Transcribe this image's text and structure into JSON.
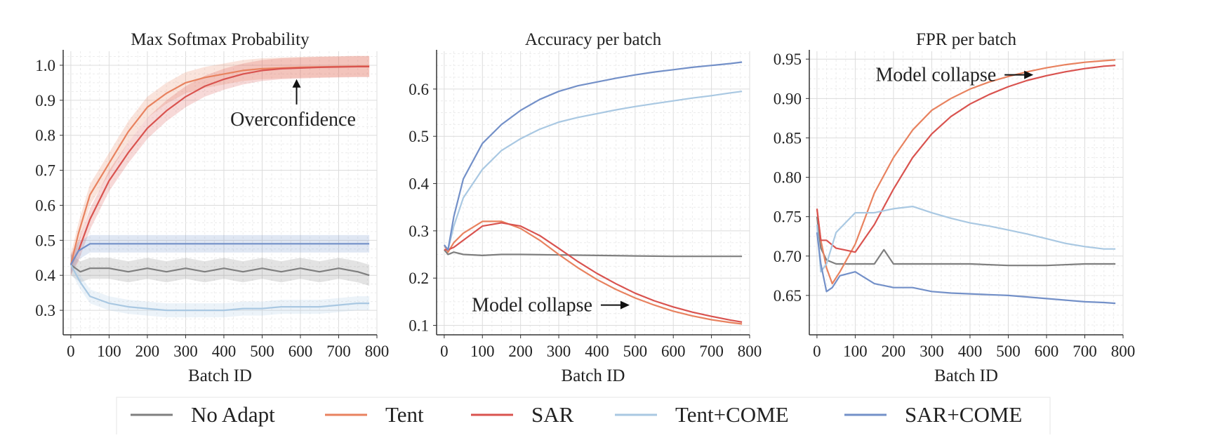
{
  "colors": {
    "no_adapt": "#7f7f7f",
    "tent": "#e8825f",
    "sar": "#d9534f",
    "tent_come": "#a9c8e2",
    "sar_come": "#7390c8"
  },
  "legend": [
    {
      "key": "no_adapt",
      "label": "No Adapt"
    },
    {
      "key": "tent",
      "label": "Tent"
    },
    {
      "key": "sar",
      "label": "SAR"
    },
    {
      "key": "tent_come",
      "label": "Tent+COME"
    },
    {
      "key": "sar_come",
      "label": "SAR+COME"
    }
  ],
  "chart_data": [
    {
      "type": "line",
      "title": "Max Softmax Probability",
      "xlabel": "Batch ID",
      "ylabel": "",
      "xlim": [
        -20,
        800
      ],
      "ylim": [
        0.23,
        1.04
      ],
      "xticks": [
        0,
        100,
        200,
        300,
        400,
        500,
        600,
        700,
        800
      ],
      "yticks": [
        0.3,
        0.4,
        0.5,
        0.6,
        0.7,
        0.8,
        0.9,
        1.0
      ],
      "ytick_labels": [
        "0.3",
        "0.4",
        "0.5",
        "0.6",
        "0.7",
        "0.8",
        "0.9",
        "1.0"
      ],
      "grid": true,
      "annotation": {
        "text": "Overconfidence",
        "arrow": "up",
        "x": 590,
        "y": 0.88
      },
      "series": [
        {
          "key": "no_adapt",
          "name": "No Adapt",
          "band": 0.03,
          "x": [
            0,
            25,
            50,
            100,
            150,
            200,
            250,
            300,
            350,
            400,
            450,
            500,
            550,
            600,
            650,
            700,
            750,
            780
          ],
          "y": [
            0.43,
            0.41,
            0.42,
            0.42,
            0.41,
            0.42,
            0.41,
            0.42,
            0.41,
            0.42,
            0.41,
            0.42,
            0.41,
            0.42,
            0.41,
            0.42,
            0.41,
            0.4
          ]
        },
        {
          "key": "tent",
          "name": "Tent",
          "band": 0.03,
          "x": [
            0,
            20,
            50,
            100,
            150,
            200,
            250,
            300,
            350,
            400,
            450,
            500,
            550,
            600,
            650,
            700,
            750,
            780
          ],
          "y": [
            0.43,
            0.52,
            0.63,
            0.72,
            0.81,
            0.88,
            0.92,
            0.95,
            0.965,
            0.975,
            0.985,
            0.99,
            0.992,
            0.994,
            0.995,
            0.996,
            0.997,
            0.997
          ]
        },
        {
          "key": "sar",
          "name": "SAR",
          "band": 0.03,
          "x": [
            0,
            20,
            50,
            100,
            150,
            200,
            250,
            300,
            350,
            400,
            450,
            500,
            550,
            600,
            650,
            700,
            750,
            780
          ],
          "y": [
            0.43,
            0.47,
            0.56,
            0.67,
            0.75,
            0.82,
            0.87,
            0.91,
            0.94,
            0.96,
            0.975,
            0.985,
            0.99,
            0.992,
            0.994,
            0.995,
            0.996,
            0.996
          ]
        },
        {
          "key": "tent_come",
          "name": "Tent+COME",
          "band": 0.02,
          "x": [
            0,
            25,
            50,
            100,
            150,
            200,
            250,
            300,
            350,
            400,
            450,
            500,
            550,
            600,
            650,
            700,
            750,
            780
          ],
          "y": [
            0.43,
            0.38,
            0.34,
            0.32,
            0.31,
            0.305,
            0.3,
            0.3,
            0.3,
            0.3,
            0.305,
            0.305,
            0.31,
            0.31,
            0.31,
            0.315,
            0.32,
            0.32
          ]
        },
        {
          "key": "sar_come",
          "name": "SAR+COME",
          "band": 0.025,
          "x": [
            0,
            20,
            50,
            100,
            150,
            200,
            250,
            300,
            350,
            400,
            450,
            500,
            550,
            600,
            650,
            700,
            750,
            780
          ],
          "y": [
            0.43,
            0.47,
            0.49,
            0.49,
            0.49,
            0.49,
            0.49,
            0.49,
            0.49,
            0.49,
            0.49,
            0.49,
            0.49,
            0.49,
            0.49,
            0.49,
            0.49,
            0.49
          ]
        }
      ]
    },
    {
      "type": "line",
      "title": "Accuracy per batch",
      "xlabel": "Batch ID",
      "ylabel": "",
      "xlim": [
        -20,
        800
      ],
      "ylim": [
        0.08,
        0.68
      ],
      "xticks": [
        0,
        100,
        200,
        300,
        400,
        500,
        600,
        700,
        800
      ],
      "yticks": [
        0.1,
        0.2,
        0.3,
        0.4,
        0.5,
        0.6
      ],
      "ytick_labels": [
        "0.1",
        "0.2",
        "0.3",
        "0.4",
        "0.5",
        "0.6"
      ],
      "grid": true,
      "annotation": {
        "text": "Model collapse",
        "arrow": "right",
        "x": 480,
        "y": 0.143
      },
      "series": [
        {
          "key": "no_adapt",
          "name": "No Adapt",
          "x": [
            0,
            10,
            25,
            50,
            100,
            150,
            200,
            300,
            400,
            500,
            600,
            700,
            780
          ],
          "y": [
            0.26,
            0.25,
            0.255,
            0.25,
            0.248,
            0.25,
            0.25,
            0.249,
            0.248,
            0.247,
            0.246,
            0.246,
            0.246
          ]
        },
        {
          "key": "tent",
          "name": "Tent",
          "x": [
            0,
            10,
            25,
            50,
            100,
            150,
            200,
            250,
            300,
            350,
            400,
            450,
            500,
            550,
            600,
            650,
            700,
            750,
            780
          ],
          "y": [
            0.27,
            0.255,
            0.275,
            0.295,
            0.32,
            0.32,
            0.305,
            0.28,
            0.25,
            0.222,
            0.197,
            0.176,
            0.158,
            0.143,
            0.13,
            0.12,
            0.112,
            0.106,
            0.103
          ]
        },
        {
          "key": "sar",
          "name": "SAR",
          "x": [
            0,
            10,
            25,
            50,
            100,
            150,
            200,
            250,
            300,
            350,
            400,
            450,
            500,
            550,
            600,
            650,
            700,
            750,
            780
          ],
          "y": [
            0.26,
            0.26,
            0.265,
            0.28,
            0.31,
            0.317,
            0.31,
            0.29,
            0.263,
            0.235,
            0.21,
            0.188,
            0.168,
            0.152,
            0.139,
            0.128,
            0.119,
            0.111,
            0.107
          ]
        },
        {
          "key": "tent_come",
          "name": "Tent+COME",
          "x": [
            0,
            10,
            25,
            50,
            100,
            150,
            200,
            250,
            300,
            350,
            400,
            450,
            500,
            550,
            600,
            650,
            700,
            750,
            780
          ],
          "y": [
            0.27,
            0.26,
            0.31,
            0.37,
            0.43,
            0.47,
            0.495,
            0.515,
            0.53,
            0.54,
            0.548,
            0.556,
            0.563,
            0.569,
            0.575,
            0.581,
            0.586,
            0.592,
            0.595
          ]
        },
        {
          "key": "sar_come",
          "name": "SAR+COME",
          "x": [
            0,
            10,
            25,
            50,
            100,
            150,
            200,
            250,
            300,
            350,
            400,
            450,
            500,
            550,
            600,
            650,
            700,
            750,
            780
          ],
          "y": [
            0.27,
            0.26,
            0.33,
            0.41,
            0.485,
            0.525,
            0.555,
            0.578,
            0.595,
            0.607,
            0.615,
            0.623,
            0.63,
            0.636,
            0.641,
            0.646,
            0.65,
            0.654,
            0.657
          ]
        }
      ]
    },
    {
      "type": "line",
      "title": "FPR per batch",
      "xlabel": "Batch ID",
      "ylabel": "",
      "xlim": [
        -20,
        800
      ],
      "ylim": [
        0.6,
        0.96
      ],
      "xticks": [
        0,
        100,
        200,
        300,
        400,
        500,
        600,
        700,
        800
      ],
      "yticks": [
        0.65,
        0.7,
        0.75,
        0.8,
        0.85,
        0.9,
        0.95
      ],
      "ytick_labels": [
        "0.65",
        "0.70",
        "0.75",
        "0.80",
        "0.85",
        "0.90",
        "0.95"
      ],
      "grid": true,
      "annotation": {
        "text": "Model collapse",
        "arrow": "right",
        "x": 560,
        "y": 0.93
      },
      "series": [
        {
          "key": "no_adapt",
          "name": "No Adapt",
          "x": [
            0,
            10,
            25,
            50,
            100,
            150,
            175,
            200,
            250,
            300,
            400,
            500,
            600,
            700,
            780
          ],
          "y": [
            0.75,
            0.71,
            0.695,
            0.69,
            0.69,
            0.69,
            0.708,
            0.69,
            0.69,
            0.69,
            0.69,
            0.688,
            0.688,
            0.69,
            0.69
          ]
        },
        {
          "key": "tent",
          "name": "Tent",
          "x": [
            0,
            10,
            25,
            40,
            60,
            100,
            150,
            200,
            250,
            300,
            350,
            400,
            450,
            500,
            550,
            600,
            650,
            700,
            750,
            780
          ],
          "y": [
            0.76,
            0.72,
            0.685,
            0.665,
            0.68,
            0.715,
            0.78,
            0.825,
            0.86,
            0.885,
            0.9,
            0.912,
            0.921,
            0.928,
            0.934,
            0.939,
            0.943,
            0.946,
            0.948,
            0.949
          ]
        },
        {
          "key": "sar",
          "name": "SAR",
          "x": [
            0,
            10,
            25,
            50,
            100,
            150,
            200,
            250,
            300,
            350,
            400,
            450,
            500,
            550,
            600,
            650,
            700,
            750,
            780
          ],
          "y": [
            0.76,
            0.72,
            0.72,
            0.71,
            0.705,
            0.74,
            0.785,
            0.825,
            0.855,
            0.877,
            0.893,
            0.905,
            0.915,
            0.923,
            0.929,
            0.934,
            0.938,
            0.941,
            0.942
          ]
        },
        {
          "key": "tent_come",
          "name": "Tent+COME",
          "x": [
            0,
            10,
            25,
            50,
            100,
            150,
            200,
            250,
            300,
            350,
            400,
            450,
            500,
            550,
            600,
            650,
            700,
            750,
            780
          ],
          "y": [
            0.74,
            0.68,
            0.69,
            0.73,
            0.755,
            0.755,
            0.76,
            0.763,
            0.755,
            0.748,
            0.742,
            0.738,
            0.733,
            0.728,
            0.722,
            0.716,
            0.712,
            0.709,
            0.709
          ]
        },
        {
          "key": "sar_come",
          "name": "SAR+COME",
          "x": [
            0,
            10,
            25,
            40,
            60,
            100,
            150,
            200,
            250,
            300,
            350,
            400,
            450,
            500,
            550,
            600,
            650,
            700,
            750,
            780
          ],
          "y": [
            0.73,
            0.69,
            0.655,
            0.66,
            0.675,
            0.68,
            0.665,
            0.66,
            0.66,
            0.655,
            0.653,
            0.652,
            0.651,
            0.65,
            0.648,
            0.646,
            0.644,
            0.642,
            0.641,
            0.64
          ]
        }
      ]
    }
  ]
}
